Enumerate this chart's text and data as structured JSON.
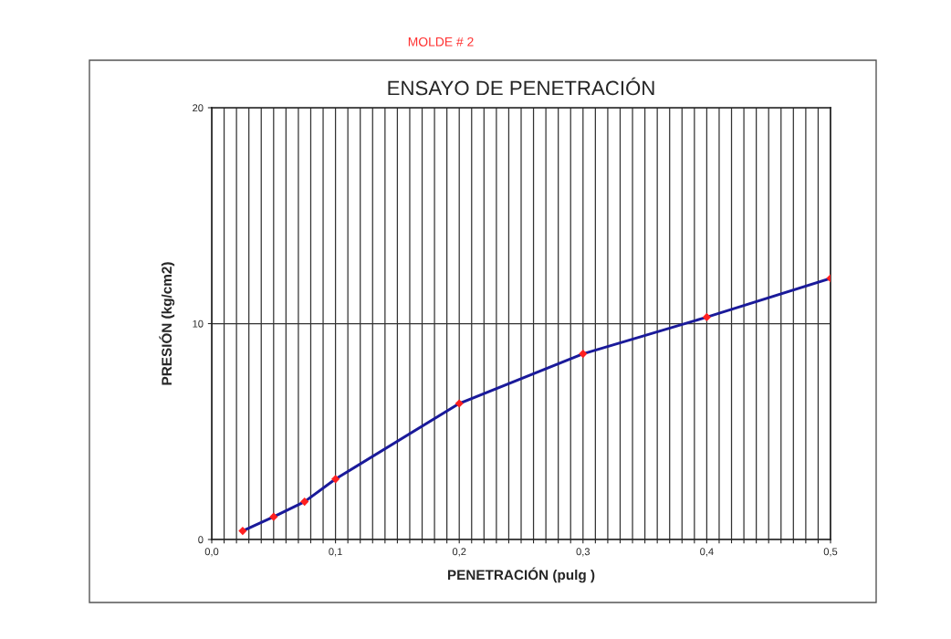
{
  "chart_data": {
    "type": "line",
    "title": "ENSAYO DE PENETRACIÓN",
    "subtitle": "MOLDE # 2",
    "xlabel": "PENETRACIÓN (pulg )",
    "ylabel": "PRESIÓN (kg/cm2)",
    "x": [
      0.025,
      0.05,
      0.075,
      0.1,
      0.2,
      0.3,
      0.4,
      0.5
    ],
    "series": [
      {
        "color": "#1a1a9a",
        "values": [
          0.4,
          1.05,
          1.75,
          2.8,
          6.3,
          8.6,
          10.3,
          12.1
        ]
      }
    ],
    "marker": "diamond",
    "line_style": "solid",
    "grid": true,
    "legend": false,
    "xlim": [
      0,
      0.5
    ],
    "ylim": [
      0,
      20
    ],
    "xticks": [
      {
        "value": 0,
        "label": "0,0"
      },
      {
        "value": 0.01,
        "label": null
      },
      {
        "value": 0.02,
        "label": null
      },
      {
        "value": 0.03,
        "label": null
      },
      {
        "value": 0.04,
        "label": null
      },
      {
        "value": 0.05,
        "label": null
      },
      {
        "value": 0.06,
        "label": null
      },
      {
        "value": 0.07,
        "label": null
      },
      {
        "value": 0.08,
        "label": null
      },
      {
        "value": 0.09,
        "label": null
      },
      {
        "value": 0.1,
        "label": "0,1"
      },
      {
        "value": 0.11,
        "label": null
      },
      {
        "value": 0.12,
        "label": null
      },
      {
        "value": 0.13,
        "label": null
      },
      {
        "value": 0.14,
        "label": null
      },
      {
        "value": 0.15,
        "label": null
      },
      {
        "value": 0.16,
        "label": null
      },
      {
        "value": 0.17,
        "label": null
      },
      {
        "value": 0.18,
        "label": null
      },
      {
        "value": 0.19,
        "label": null
      },
      {
        "value": 0.2,
        "label": "0,2"
      },
      {
        "value": 0.21,
        "label": null
      },
      {
        "value": 0.22,
        "label": null
      },
      {
        "value": 0.23,
        "label": null
      },
      {
        "value": 0.24,
        "label": null
      },
      {
        "value": 0.25,
        "label": null
      },
      {
        "value": 0.26,
        "label": null
      },
      {
        "value": 0.27,
        "label": null
      },
      {
        "value": 0.28,
        "label": null
      },
      {
        "value": 0.29,
        "label": null
      },
      {
        "value": 0.3,
        "label": "0,3"
      },
      {
        "value": 0.31,
        "label": null
      },
      {
        "value": 0.32,
        "label": null
      },
      {
        "value": 0.33,
        "label": null
      },
      {
        "value": 0.34,
        "label": null
      },
      {
        "value": 0.35,
        "label": null
      },
      {
        "value": 0.36,
        "label": null
      },
      {
        "value": 0.37,
        "label": null
      },
      {
        "value": 0.38,
        "label": null
      },
      {
        "value": 0.39,
        "label": null
      },
      {
        "value": 0.4,
        "label": "0,4"
      },
      {
        "value": 0.41,
        "label": null
      },
      {
        "value": 0.42,
        "label": null
      },
      {
        "value": 0.43,
        "label": null
      },
      {
        "value": 0.44,
        "label": null
      },
      {
        "value": 0.45,
        "label": null
      },
      {
        "value": 0.46,
        "label": null
      },
      {
        "value": 0.47,
        "label": null
      },
      {
        "value": 0.48,
        "label": null
      },
      {
        "value": 0.49,
        "label": null
      },
      {
        "value": 0.5,
        "label": "0,5"
      }
    ],
    "yticks": [
      0,
      10,
      20
    ]
  }
}
